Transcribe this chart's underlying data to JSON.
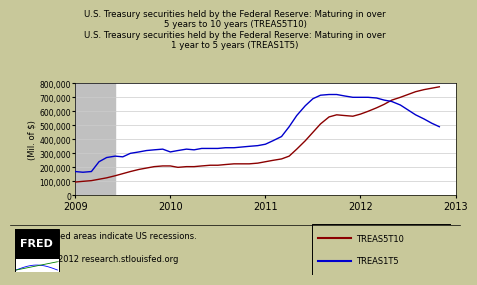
{
  "title_line1": "U.S. Treasury securities held by the Federal Reserve: Maturing in over",
  "title_line2": "5 years to 10 years (TREAS5T10)",
  "title_line3": "U.S. Treasury securities held by the Federal Reserve: Maturing in over",
  "title_line4": "1 year to 5 years (TREAS1T5)",
  "ylabel": "(Mil. of $)",
  "bg_color": "#c8c89a",
  "plot_bg_color": "#ffffff",
  "recession_color": "#c0c0c0",
  "recession_start": 2009.0,
  "recession_end": 2009.42,
  "xlim": [
    2009.0,
    2013.0
  ],
  "ylim": [
    0,
    800000
  ],
  "yticks": [
    0,
    100000,
    200000,
    300000,
    400000,
    500000,
    600000,
    700000,
    800000
  ],
  "xticks": [
    2009,
    2010,
    2011,
    2012,
    2013
  ],
  "fred_text1": "Shaded areas indicate US recessions.",
  "fred_text2": "2012 research.stlouisfed.org",
  "treas5t10_color": "#8b0000",
  "treas1t5_color": "#0000cd",
  "treas5t10_label": "TREAS5T10",
  "treas1t5_label": "TREAS1T5",
  "treas5t10_x": [
    2009.0,
    2009.08,
    2009.17,
    2009.25,
    2009.33,
    2009.42,
    2009.5,
    2009.58,
    2009.67,
    2009.75,
    2009.83,
    2009.92,
    2010.0,
    2010.08,
    2010.17,
    2010.25,
    2010.33,
    2010.42,
    2010.5,
    2010.58,
    2010.67,
    2010.75,
    2010.83,
    2010.92,
    2011.0,
    2011.08,
    2011.17,
    2011.25,
    2011.33,
    2011.42,
    2011.5,
    2011.58,
    2011.67,
    2011.75,
    2011.83,
    2011.92,
    2012.0,
    2012.08,
    2012.17,
    2012.25,
    2012.33,
    2012.42,
    2012.5,
    2012.58,
    2012.67,
    2012.75,
    2012.83
  ],
  "treas5t10_y": [
    95000,
    100000,
    105000,
    115000,
    125000,
    140000,
    155000,
    170000,
    185000,
    195000,
    205000,
    210000,
    210000,
    200000,
    205000,
    205000,
    210000,
    215000,
    215000,
    220000,
    225000,
    225000,
    225000,
    230000,
    240000,
    250000,
    260000,
    280000,
    330000,
    390000,
    450000,
    510000,
    560000,
    575000,
    570000,
    565000,
    580000,
    600000,
    625000,
    650000,
    680000,
    700000,
    720000,
    740000,
    755000,
    765000,
    775000
  ],
  "treas1t5_x": [
    2009.0,
    2009.08,
    2009.17,
    2009.25,
    2009.33,
    2009.42,
    2009.5,
    2009.58,
    2009.67,
    2009.75,
    2009.83,
    2009.92,
    2010.0,
    2010.08,
    2010.17,
    2010.25,
    2010.33,
    2010.42,
    2010.5,
    2010.58,
    2010.67,
    2010.75,
    2010.83,
    2010.92,
    2011.0,
    2011.08,
    2011.17,
    2011.25,
    2011.33,
    2011.42,
    2011.5,
    2011.58,
    2011.67,
    2011.75,
    2011.83,
    2011.92,
    2012.0,
    2012.08,
    2012.17,
    2012.25,
    2012.33,
    2012.42,
    2012.5,
    2012.58,
    2012.67,
    2012.75,
    2012.83
  ],
  "treas1t5_y": [
    170000,
    165000,
    170000,
    240000,
    270000,
    280000,
    275000,
    300000,
    310000,
    320000,
    325000,
    330000,
    310000,
    320000,
    330000,
    325000,
    335000,
    335000,
    335000,
    340000,
    340000,
    345000,
    350000,
    355000,
    365000,
    390000,
    420000,
    490000,
    570000,
    640000,
    690000,
    715000,
    720000,
    720000,
    710000,
    700000,
    700000,
    700000,
    695000,
    680000,
    670000,
    645000,
    610000,
    575000,
    545000,
    515000,
    490000
  ]
}
